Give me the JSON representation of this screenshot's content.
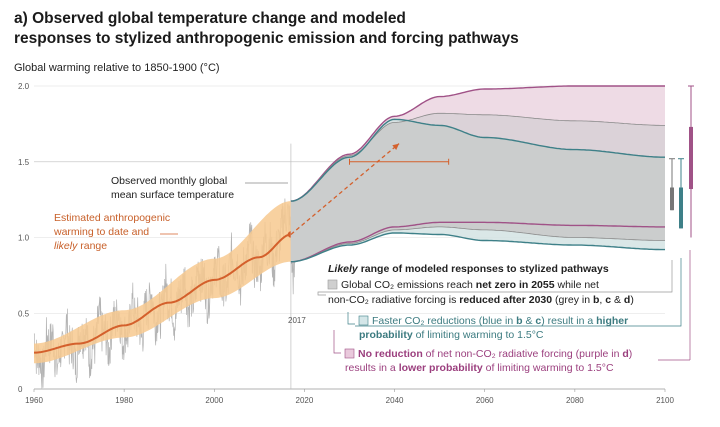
{
  "title_line1": "a) Observed global temperature change and modeled",
  "title_line2": "responses to stylized anthropogenic emission and forcing pathways",
  "chart_data": {
    "type": "area",
    "ylabel": "Global warming relative to 1850-1900 (°C)",
    "xlim": [
      1960,
      2100
    ],
    "ylim": [
      0,
      2.0
    ],
    "x_ticks": [
      "1960",
      "1980",
      "2000",
      "2020",
      "2040",
      "2060",
      "2080",
      "2100"
    ],
    "y_ticks": [
      "0",
      "0.5",
      "1.0",
      "1.5",
      "2.0"
    ],
    "marker_year_label": "2017",
    "observed_label_line1": "Observed monthly global",
    "observed_label_line2": "mean surface temperature",
    "estimated_label_line1": "Estimated anthropogenic",
    "estimated_label_line2": "warming to date and",
    "estimated_label_line3_italic": "likely",
    "estimated_label_line3_rest": " range",
    "modeled_heading_italic": "Likely",
    "modeled_heading_rest": " range of modeled responses to stylized pathways",
    "grey_line1_a": "Global CO₂ emissions reach ",
    "grey_line1_b": "net zero in 2055",
    "grey_line1_c": " while net",
    "grey_line2_a": "non-CO₂ radiative forcing is ",
    "grey_line2_b": "reduced after 2030",
    "grey_line2_c": " (grey in ",
    "grey_line2_d": "b",
    "grey_line2_e": ", ",
    "grey_line2_f": "c",
    "grey_line2_g": " & ",
    "grey_line2_h": "d",
    "grey_line2_i": ")",
    "blue_line1_a": "Faster CO₂ reductions (blue in ",
    "blue_line1_b": "b",
    "blue_line1_c": " & ",
    "blue_line1_d": "c",
    "blue_line1_e": ") result in a ",
    "blue_line1_f": "higher",
    "blue_line2_a": "probability",
    "blue_line2_b": " of limiting warming to 1.5°C",
    "purple_line1_a": "No reduction",
    "purple_line1_b": " of net non-CO₂ radiative forcing (purple in ",
    "purple_line1_c": "d",
    "purple_line1_d": ")",
    "purple_line2_a": "results in a ",
    "purple_line2_b": "lower probability",
    "purple_line2_c": " of limiting warming to 1.5°C",
    "anthropogenic_central": [
      {
        "x": 1960,
        "y": 0.24
      },
      {
        "x": 1970,
        "y": 0.3
      },
      {
        "x": 1980,
        "y": 0.42
      },
      {
        "x": 1990,
        "y": 0.57
      },
      {
        "x": 2000,
        "y": 0.72
      },
      {
        "x": 2010,
        "y": 0.87
      },
      {
        "x": 2017,
        "y": 1.02
      }
    ],
    "anthropogenic_range": [
      {
        "x": 1960,
        "lo": 0.17,
        "hi": 0.3
      },
      {
        "x": 1980,
        "lo": 0.34,
        "hi": 0.52
      },
      {
        "x": 2000,
        "lo": 0.6,
        "hi": 0.86
      },
      {
        "x": 2017,
        "lo": 0.84,
        "hi": 1.24
      }
    ],
    "scenarios": [
      {
        "name": "purple",
        "color": "#a05287",
        "upper": [
          [
            2017,
            1.24
          ],
          [
            2030,
            1.55
          ],
          [
            2040,
            1.8
          ],
          [
            2050,
            1.93
          ],
          [
            2060,
            1.98
          ],
          [
            2080,
            2.0
          ],
          [
            2100,
            2.0
          ]
        ],
        "lower": [
          [
            2017,
            0.84
          ],
          [
            2030,
            0.97
          ],
          [
            2040,
            1.07
          ],
          [
            2050,
            1.1
          ],
          [
            2060,
            1.1
          ],
          [
            2080,
            1.08
          ],
          [
            2100,
            1.07
          ]
        ]
      },
      {
        "name": "grey",
        "color": "#7a7a7a",
        "upper": [
          [
            2017,
            1.24
          ],
          [
            2030,
            1.54
          ],
          [
            2040,
            1.76
          ],
          [
            2050,
            1.82
          ],
          [
            2060,
            1.81
          ],
          [
            2080,
            1.77
          ],
          [
            2100,
            1.74
          ]
        ],
        "lower": [
          [
            2017,
            0.84
          ],
          [
            2030,
            0.96
          ],
          [
            2040,
            1.05
          ],
          [
            2050,
            1.07
          ],
          [
            2060,
            1.05
          ],
          [
            2080,
            1.0
          ],
          [
            2100,
            0.98
          ]
        ]
      },
      {
        "name": "teal",
        "color": "#3e8088",
        "upper": [
          [
            2017,
            1.24
          ],
          [
            2030,
            1.53
          ],
          [
            2040,
            1.78
          ],
          [
            2050,
            1.74
          ],
          [
            2060,
            1.66
          ],
          [
            2080,
            1.58
          ],
          [
            2100,
            1.53
          ]
        ],
        "lower": [
          [
            2017,
            0.84
          ],
          [
            2030,
            0.95
          ],
          [
            2040,
            1.03
          ],
          [
            2050,
            1.02
          ],
          [
            2060,
            0.98
          ],
          [
            2080,
            0.95
          ],
          [
            2100,
            0.92
          ]
        ]
      }
    ],
    "range_2040": {
      "x_from": 2030,
      "x_to": 2052,
      "y": 1.5
    },
    "side_bars": [
      {
        "name": "grey",
        "color": "#777777",
        "lo": 1.18,
        "hi": 1.52,
        "thick_lo": 1.18,
        "thick_hi": 1.33
      },
      {
        "name": "teal",
        "color": "#3e8088",
        "lo": 1.06,
        "hi": 1.52,
        "thick_lo": 1.06,
        "thick_hi": 1.33
      },
      {
        "name": "purple",
        "color": "#a05287",
        "lo": 1.0,
        "hi": 2.0,
        "thick_lo": 1.32,
        "thick_hi": 1.73
      }
    ]
  }
}
